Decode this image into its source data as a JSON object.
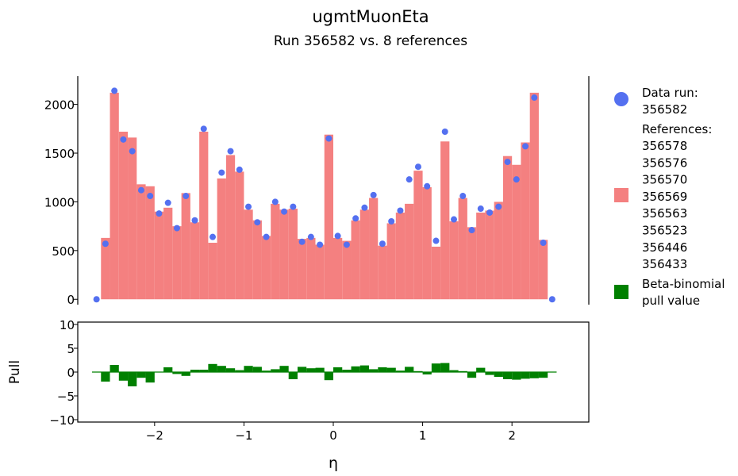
{
  "chart_data": [
    {
      "type": "bar",
      "title": "ugmtMuonEta",
      "subtitle": "Run 356582 vs. 8 references",
      "xlabel": "η",
      "ylabel": "",
      "xlim": [
        -2.86,
        2.86
      ],
      "ylim": [
        -55,
        2290
      ],
      "yticks": [
        0,
        500,
        1000,
        1500,
        2000
      ],
      "grid": false,
      "legend": {
        "placement": "right",
        "data_run_label": "Data run:",
        "data_run_id": "356582",
        "references_label": "References:",
        "references": [
          "356578",
          "356576",
          "356570",
          "356569",
          "356563",
          "356523",
          "356446",
          "356433"
        ],
        "pull_label_line1": "Beta-binomial",
        "pull_label_line2": "pull value"
      },
      "colors": {
        "data_points": "#5470f0",
        "reference_bars": "#f48080",
        "pull_bars": "#008000"
      },
      "bin_width": 0.1,
      "bin_centers": [
        -2.65,
        -2.55,
        -2.45,
        -2.35,
        -2.25,
        -2.15,
        -2.05,
        -1.95,
        -1.85,
        -1.75,
        -1.65,
        -1.55,
        -1.45,
        -1.35,
        -1.25,
        -1.15,
        -1.05,
        -0.95,
        -0.85,
        -0.75,
        -0.65,
        -0.55,
        -0.45,
        -0.35,
        -0.25,
        -0.15,
        -0.05,
        0.05,
        0.15,
        0.25,
        0.35,
        0.45,
        0.55,
        0.65,
        0.75,
        0.85,
        0.95,
        1.05,
        1.15,
        1.25,
        1.35,
        1.45,
        1.55,
        1.65,
        1.75,
        1.85,
        1.95,
        2.05,
        2.15,
        2.25,
        2.35,
        2.45,
        2.55
      ],
      "series": [
        {
          "name": "Data run: 356582",
          "values": [
            0,
            570,
            2140,
            1640,
            1520,
            1120,
            1060,
            880,
            990,
            730,
            1060,
            810,
            1750,
            640,
            1300,
            1520,
            1330,
            950,
            790,
            640,
            1000,
            900,
            950,
            590,
            640,
            560,
            1650,
            650,
            560,
            830,
            940,
            1070,
            570,
            800,
            910,
            1230,
            1360,
            1160,
            600,
            1720,
            820,
            1060,
            710,
            930,
            890,
            950,
            1410,
            1230,
            1570,
            2070,
            580,
            0,
            0
          ]
        },
        {
          "name": "References",
          "values": [
            0,
            630,
            2120,
            1720,
            1660,
            1180,
            1160,
            900,
            940,
            750,
            1090,
            790,
            1720,
            580,
            1240,
            1480,
            1310,
            920,
            810,
            650,
            980,
            920,
            930,
            620,
            630,
            560,
            1690,
            630,
            600,
            810,
            920,
            1040,
            550,
            780,
            890,
            980,
            1320,
            1150,
            540,
            1620,
            800,
            1040,
            740,
            890,
            910,
            1000,
            1470,
            1380,
            1610,
            2120,
            610,
            0,
            0
          ]
        }
      ]
    },
    {
      "type": "bar",
      "title": "",
      "xlabel": "η",
      "ylabel": "Pull",
      "xlim": [
        -2.86,
        2.86
      ],
      "ylim": [
        -10.5,
        10.5
      ],
      "yticks": [
        -10,
        -5,
        0,
        5,
        10
      ],
      "xticks": [
        -2,
        -1,
        0,
        1,
        2
      ],
      "grid": false,
      "bin_centers": [
        -2.65,
        -2.55,
        -2.45,
        -2.35,
        -2.25,
        -2.15,
        -2.05,
        -1.95,
        -1.85,
        -1.75,
        -1.65,
        -1.55,
        -1.45,
        -1.35,
        -1.25,
        -1.15,
        -1.05,
        -0.95,
        -0.85,
        -0.75,
        -0.65,
        -0.55,
        -0.45,
        -0.35,
        -0.25,
        -0.15,
        -0.05,
        0.05,
        0.15,
        0.25,
        0.35,
        0.45,
        0.55,
        0.65,
        0.75,
        0.85,
        0.95,
        1.05,
        1.15,
        1.25,
        1.35,
        1.45,
        1.55,
        1.65,
        1.75,
        1.85,
        1.95,
        2.05,
        2.15,
        2.25,
        2.35,
        2.45,
        2.55
      ],
      "series": [
        {
          "name": "Beta-binomial pull value",
          "values": [
            0,
            -2.0,
            1.5,
            -1.8,
            -3.0,
            -1.2,
            -2.2,
            0,
            1.0,
            -0.4,
            -0.8,
            0.5,
            0.5,
            1.7,
            1.3,
            0.8,
            0.4,
            1.3,
            1.1,
            0.3,
            0.6,
            1.3,
            -1.5,
            1.1,
            0.8,
            0.9,
            -1.7,
            1.0,
            0.5,
            1.2,
            1.4,
            0.6,
            1.0,
            0.9,
            0.3,
            1.1,
            0.2,
            -0.5,
            1.8,
            1.9,
            0.4,
            0.2,
            -1.2,
            0.9,
            -0.6,
            -1.0,
            -1.5,
            -1.6,
            -1.4,
            -1.3,
            -1.2,
            0,
            0
          ]
        }
      ]
    }
  ]
}
